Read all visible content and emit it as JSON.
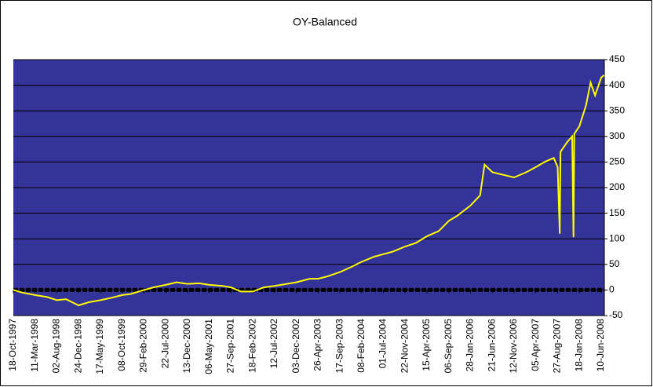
{
  "chart_data": {
    "type": "line",
    "title": "OY-Balanced",
    "x": [
      "18-Oct-1997",
      "15-Dec-1997",
      "11-Mar-1998",
      "01-Jun-1998",
      "02-Aug-1998",
      "01-Oct-1998",
      "24-Dec-1998",
      "01-Mar-1999",
      "17-May-1999",
      "01-Aug-1999",
      "08-Oct-1999",
      "01-Dec-1999",
      "29-Feb-2000",
      "01-May-2000",
      "22-Jul-2000",
      "01-Oct-2000",
      "13-Dec-2000",
      "01-Mar-2001",
      "06-May-2001",
      "01-Aug-2001",
      "27-Sep-2001",
      "01-Dec-2001",
      "18-Feb-2002",
      "01-May-2002",
      "12-Jul-2002",
      "01-Oct-2002",
      "03-Dec-2002",
      "01-Mar-2003",
      "26-Apr-2003",
      "01-Jul-2003",
      "17-Sep-2003",
      "01-Dec-2003",
      "08-Feb-2004",
      "01-May-2004",
      "01-Jul-2004",
      "01-Sep-2004",
      "22-Nov-2004",
      "01-Feb-2005",
      "15-Apr-2005",
      "01-Jul-2005",
      "06-Sep-2005",
      "01-Nov-2005",
      "28-Jan-2006",
      "01-Apr-2006",
      "01-May-2006",
      "21-Jun-2006",
      "01-Sep-2006",
      "12-Nov-2006",
      "01-Feb-2007",
      "05-Apr-2007",
      "01-Jun-2007",
      "01-Aug-2007",
      "27-Aug-2007",
      "10-Sep-2007",
      "15-Sep-2007",
      "01-Nov-2007",
      "01-Dec-2007",
      "10-Dec-2007",
      "15-Dec-2007",
      "18-Jan-2008",
      "01-Mar-2008",
      "01-Apr-2008",
      "01-May-2008",
      "10-Jun-2008",
      "30-Jun-2008"
    ],
    "series": [
      {
        "name": "OY-Balanced",
        "color": "#ffff00",
        "values": [
          0,
          -5,
          -10,
          -14,
          -20,
          -18,
          -30,
          -24,
          -20,
          -15,
          -10,
          -8,
          0,
          5,
          10,
          15,
          12,
          13,
          10,
          8,
          5,
          -3,
          -3,
          5,
          8,
          12,
          15,
          22,
          22,
          27,
          35,
          45,
          55,
          65,
          70,
          75,
          85,
          92,
          105,
          115,
          135,
          145,
          165,
          185,
          245,
          230,
          225,
          220,
          230,
          240,
          250,
          258,
          240,
          110,
          270,
          290,
          300,
          103,
          305,
          320,
          360,
          405,
          380,
          415,
          420
        ]
      }
    ],
    "xlim": [
      "18-Oct-1997",
      "01-Jul-2008"
    ],
    "xticks": [
      "18-Oct-1997",
      "11-Mar-1998",
      "02-Aug-1998",
      "24-Dec-1998",
      "17-May-1999",
      "08-Oct-1999",
      "29-Feb-2000",
      "22-Jul-2000",
      "13-Dec-2000",
      "06-May-2001",
      "27-Sep-2001",
      "18-Feb-2002",
      "12-Jul-2002",
      "03-Dec-2002",
      "26-Apr-2003",
      "17-Sep-2003",
      "08-Feb-2004",
      "01-Jul-2004",
      "22-Nov-2004",
      "15-Apr-2005",
      "06-Sep-2005",
      "28-Jan-2006",
      "21-Jun-2006",
      "12-Nov-2006",
      "05-Apr-2007",
      "27-Aug-2007",
      "18-Jan-2008",
      "10-Jun-2008"
    ],
    "ylim": [
      -50,
      450
    ],
    "yticks": [
      -50,
      0,
      50,
      100,
      150,
      200,
      250,
      300,
      350,
      400,
      450
    ],
    "grid": true,
    "plot_background": "#333399"
  }
}
